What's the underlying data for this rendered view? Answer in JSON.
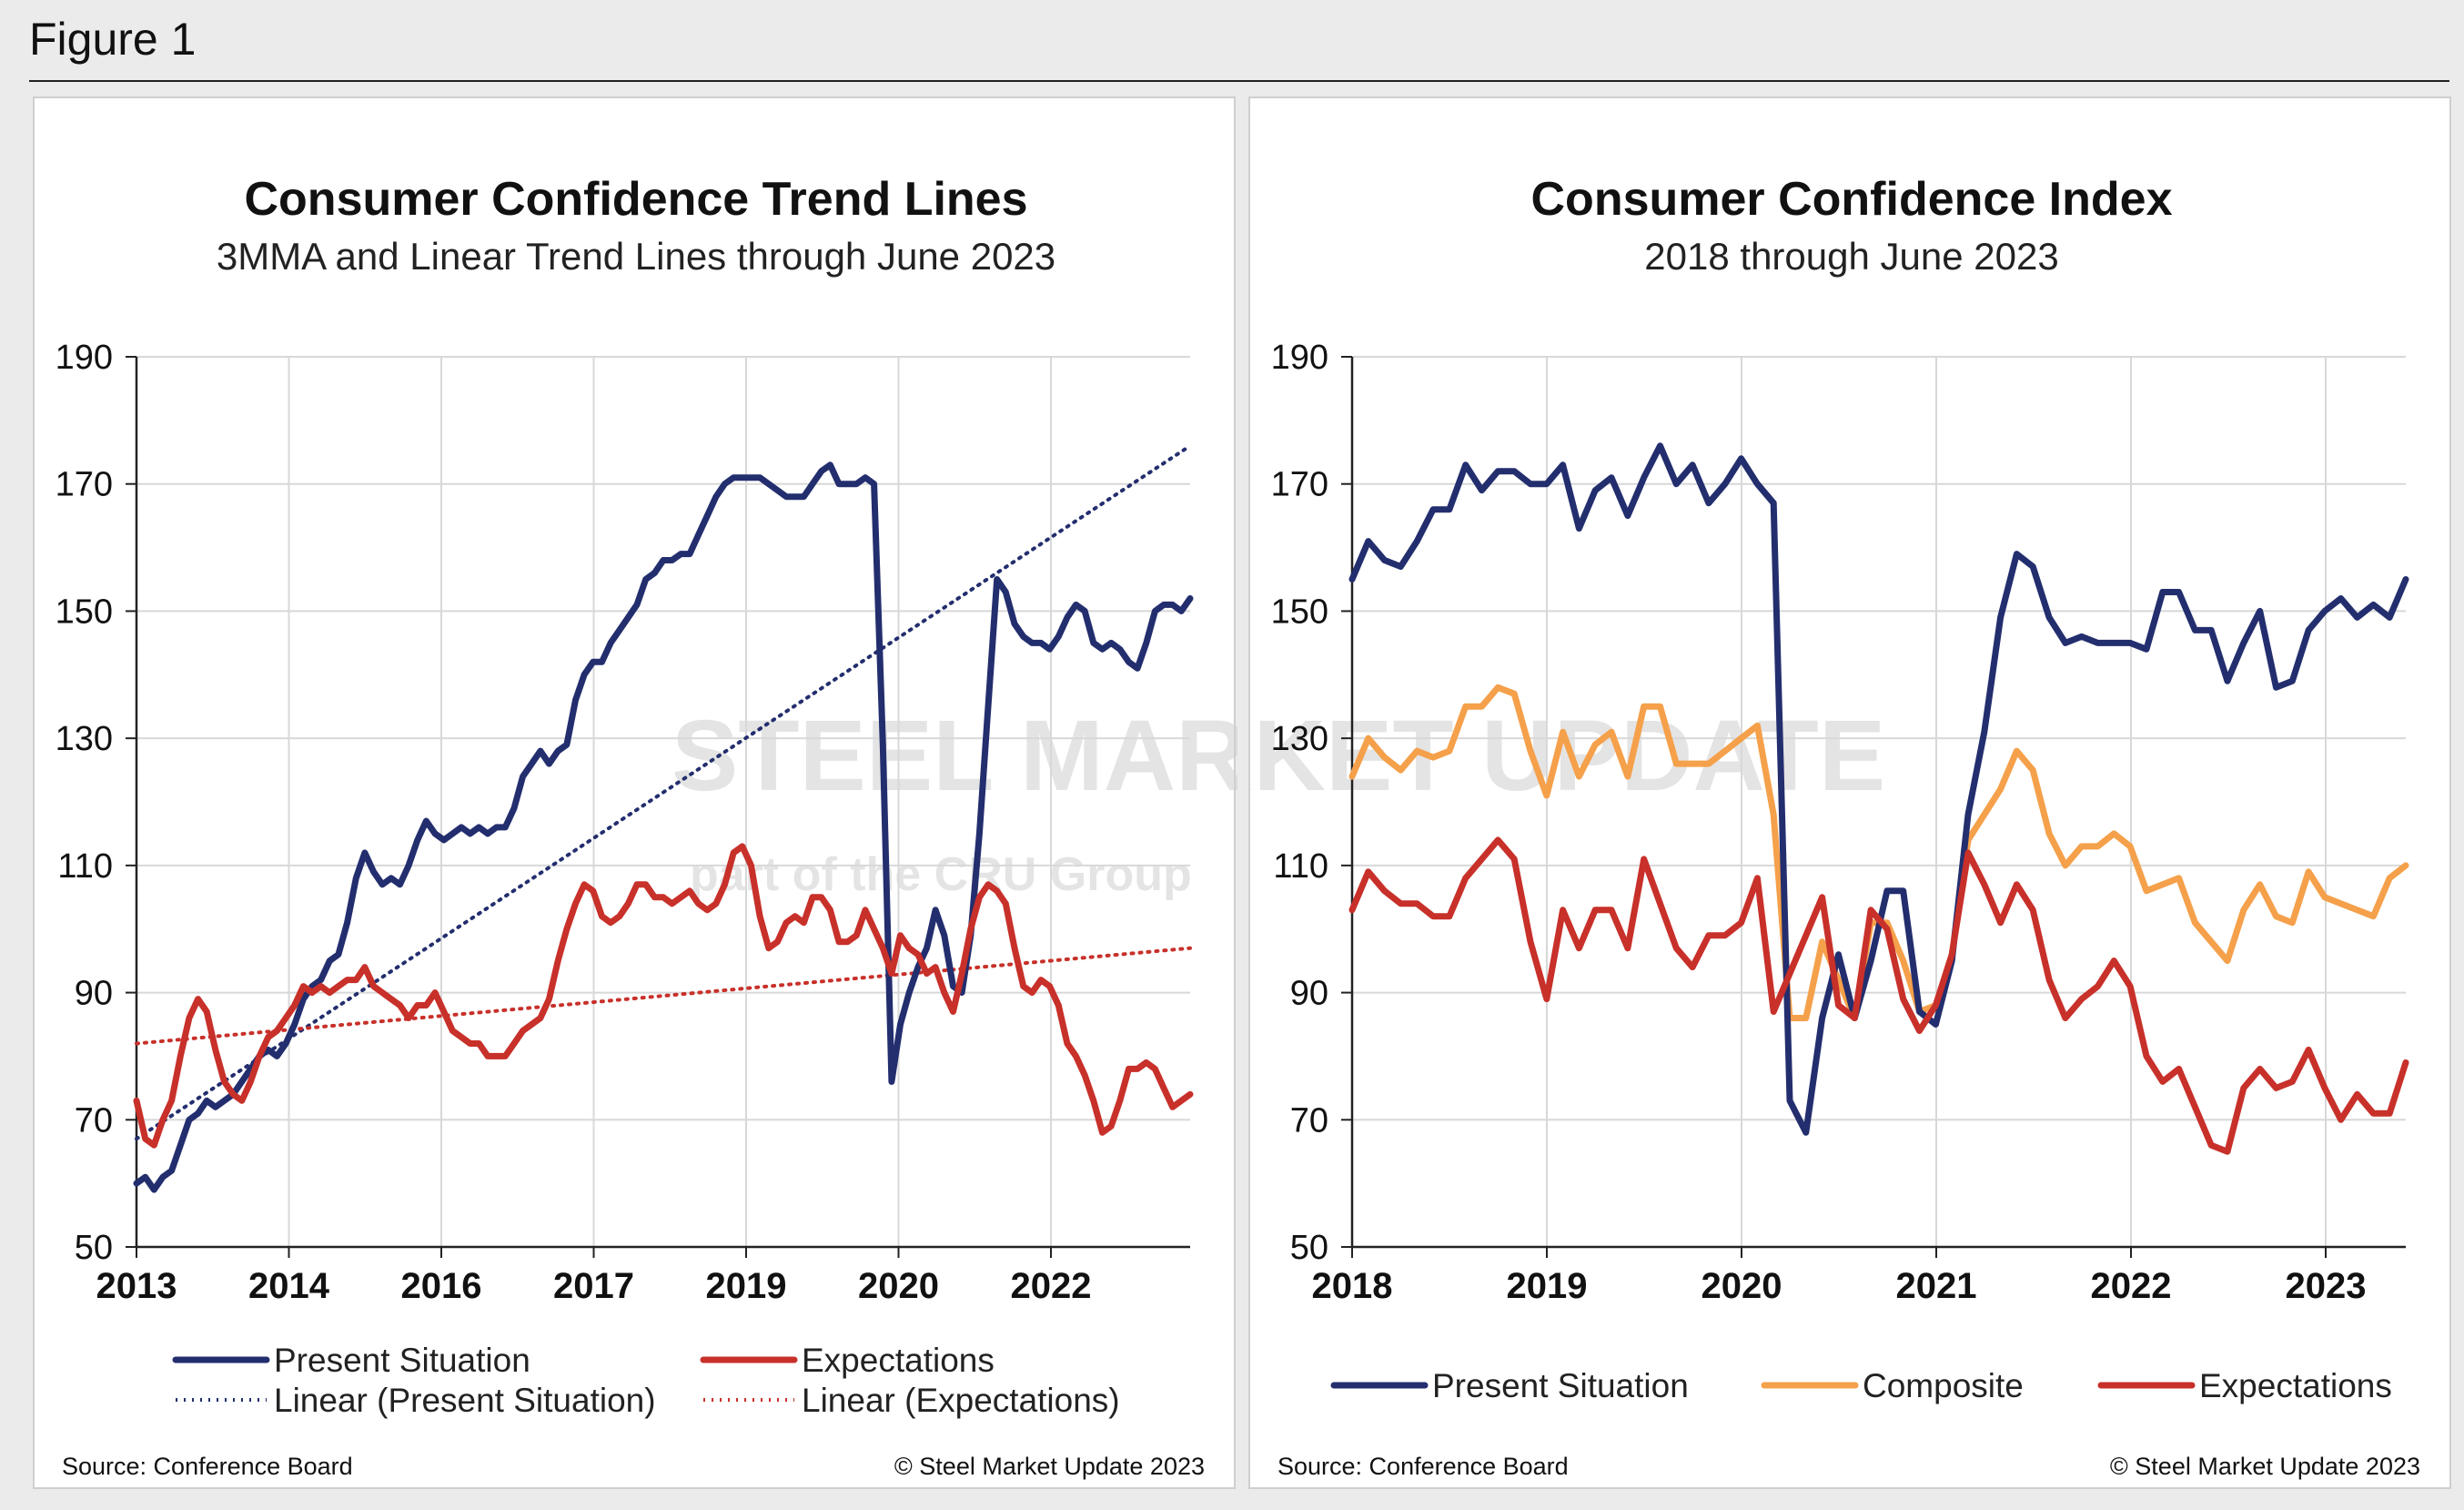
{
  "figure_title": "Figure 1",
  "colors": {
    "present": "#232e6e",
    "expectations": "#c8302a",
    "composite": "#f5a04a",
    "grid": "#d8d8d8",
    "watermark": "#cfcfcf"
  },
  "watermark": {
    "main": "STEEL MARKET UPDATE",
    "sub": "part of the CRU Group"
  },
  "chart_data": [
    {
      "type": "line",
      "title": "Consumer Confidence Trend Lines",
      "subtitle": "3MMA and Linear Trend Lines through June 2023",
      "ylim": [
        50,
        190
      ],
      "yticks": [
        50,
        70,
        90,
        110,
        130,
        150,
        170,
        190
      ],
      "xtick_labels": [
        "2013",
        "2014",
        "2016",
        "2017",
        "2019",
        "2020",
        "2022"
      ],
      "grid": true,
      "legend_position": "bottom",
      "source": "Source: Conference Board",
      "copyright": "© Steel Market Update 2023",
      "series": [
        {
          "name": "Present Situation",
          "style": "solid",
          "color": "#232e6e",
          "values": [
            60,
            61,
            59,
            61,
            62,
            66,
            70,
            71,
            73,
            72,
            73,
            74,
            76,
            78,
            80,
            81,
            80,
            82,
            85,
            89,
            91,
            92,
            95,
            96,
            101,
            108,
            112,
            109,
            107,
            108,
            107,
            110,
            114,
            117,
            115,
            114,
            115,
            116,
            115,
            116,
            115,
            116,
            116,
            119,
            124,
            126,
            128,
            126,
            128,
            129,
            136,
            140,
            142,
            142,
            145,
            147,
            149,
            151,
            155,
            156,
            158,
            158,
            159,
            159,
            162,
            165,
            168,
            170,
            171,
            171,
            171,
            171,
            170,
            169,
            168,
            168,
            168,
            170,
            172,
            173,
            170,
            170,
            170,
            171,
            170,
            129,
            76,
            85,
            90,
            94,
            97,
            103,
            99,
            91,
            90,
            99,
            115,
            135,
            155,
            153,
            148,
            146,
            145,
            145,
            144,
            146,
            149,
            151,
            150,
            145,
            144,
            145,
            144,
            142,
            141,
            145,
            150,
            151,
            151,
            150,
            152
          ]
        },
        {
          "name": "Expectations",
          "style": "solid",
          "color": "#c8302a",
          "values": [
            73,
            67,
            66,
            70,
            73,
            80,
            86,
            89,
            87,
            81,
            76,
            74,
            73,
            76,
            80,
            83,
            84,
            86,
            88,
            91,
            90,
            91,
            90,
            91,
            92,
            92,
            94,
            91,
            90,
            89,
            88,
            86,
            88,
            88,
            90,
            87,
            84,
            83,
            82,
            82,
            80,
            80,
            80,
            82,
            84,
            85,
            86,
            89,
            95,
            100,
            104,
            107,
            106,
            102,
            101,
            102,
            104,
            107,
            107,
            105,
            105,
            104,
            105,
            106,
            104,
            103,
            104,
            107,
            112,
            113,
            110,
            102,
            97,
            98,
            101,
            102,
            101,
            105,
            105,
            103,
            98,
            98,
            99,
            103,
            100,
            97,
            93,
            99,
            97,
            96,
            93,
            94,
            90,
            87,
            93,
            100,
            105,
            107,
            106,
            104,
            97,
            91,
            90,
            92,
            91,
            88,
            82,
            80,
            77,
            73,
            68,
            69,
            73,
            78,
            78,
            79,
            78,
            75,
            72,
            73,
            74
          ]
        },
        {
          "name": "Linear (Present Situation)",
          "style": "dotted",
          "color": "#232e6e",
          "values": [
            67,
            176
          ]
        },
        {
          "name": "Linear (Expectations)",
          "style": "dotted",
          "color": "#c8302a",
          "values": [
            82,
            97
          ]
        }
      ]
    },
    {
      "type": "line",
      "title": "Consumer Confidence Index",
      "subtitle": "2018 through June 2023",
      "ylim": [
        50,
        190
      ],
      "yticks": [
        50,
        70,
        90,
        110,
        130,
        150,
        170,
        190
      ],
      "xtick_labels": [
        "2018",
        "2019",
        "2020",
        "2021",
        "2022",
        "2023"
      ],
      "grid": true,
      "legend_position": "bottom",
      "source": "Source: Conference Board",
      "copyright": "© Steel Market Update 2023",
      "series": [
        {
          "name": "Present Situation",
          "color": "#232e6e",
          "values": [
            155,
            161,
            158,
            157,
            161,
            166,
            166,
            173,
            169,
            172,
            172,
            170,
            170,
            173,
            163,
            169,
            171,
            165,
            171,
            176,
            170,
            173,
            167,
            170,
            174,
            170,
            167,
            73,
            68,
            86,
            96,
            86,
            95,
            106,
            106,
            87,
            85,
            95,
            118,
            131,
            149,
            159,
            157,
            149,
            145,
            146,
            145,
            145,
            145,
            144,
            153,
            153,
            147,
            147,
            139,
            145,
            150,
            138,
            139,
            147,
            150,
            152,
            149,
            151,
            149,
            155
          ]
        },
        {
          "name": "Composite",
          "color": "#f5a04a",
          "values": [
            124,
            130,
            127,
            125,
            128,
            127,
            128,
            135,
            135,
            138,
            137,
            128,
            121,
            131,
            124,
            129,
            131,
            124,
            135,
            135,
            126,
            126,
            126,
            128,
            130,
            132,
            118,
            86,
            86,
            98,
            92,
            86,
            101,
            101,
            95,
            87,
            88,
            96,
            114,
            118,
            122,
            128,
            125,
            115,
            110,
            113,
            113,
            115,
            113,
            106,
            107,
            108,
            101,
            98,
            95,
            103,
            107,
            102,
            101,
            109,
            105,
            104,
            103,
            102,
            108,
            110
          ]
        },
        {
          "name": "Expectations",
          "color": "#c8302a",
          "values": [
            103,
            109,
            106,
            104,
            104,
            102,
            102,
            108,
            111,
            114,
            111,
            98,
            89,
            103,
            97,
            103,
            103,
            97,
            111,
            104,
            97,
            94,
            99,
            99,
            101,
            108,
            87,
            93,
            99,
            105,
            88,
            86,
            103,
            100,
            89,
            84,
            88,
            96,
            112,
            107,
            101,
            107,
            103,
            92,
            86,
            89,
            91,
            95,
            91,
            80,
            76,
            78,
            72,
            66,
            65,
            75,
            78,
            75,
            76,
            81,
            75,
            70,
            74,
            71,
            71,
            79
          ]
        }
      ]
    }
  ]
}
